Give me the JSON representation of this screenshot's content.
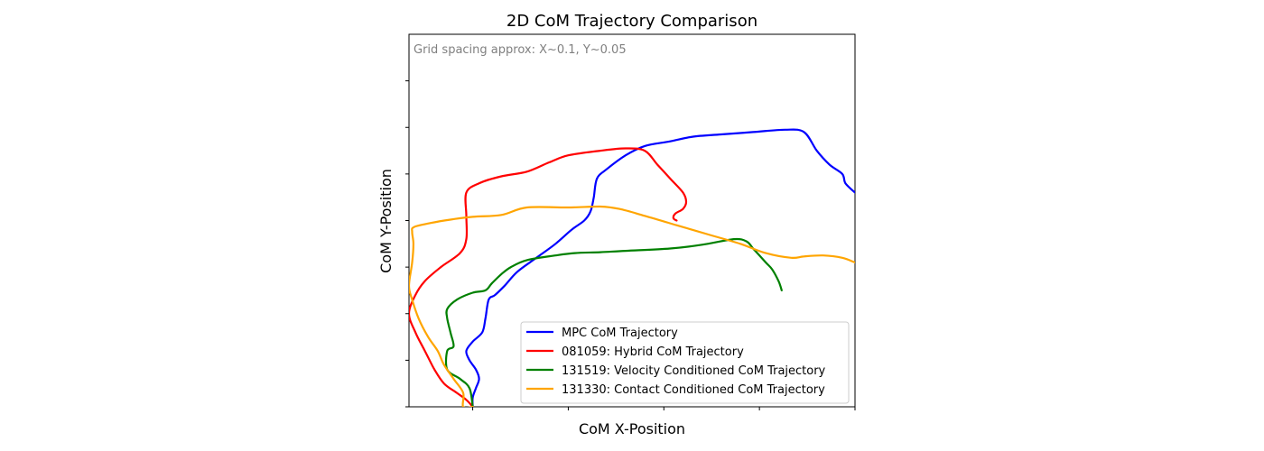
{
  "chart_data": {
    "type": "line",
    "title": "2D CoM Trajectory Comparison",
    "xlabel": "CoM X-Position",
    "ylabel": "CoM Y-Position",
    "xlim": [
      -0.1,
      0.6
    ],
    "ylim": [
      -0.05,
      0.75
    ],
    "x_ticks": [
      0.0,
      0.15,
      0.3,
      0.45,
      0.6
    ],
    "y_ticks": [
      -0.05,
      0.05,
      0.15,
      0.25,
      0.35,
      0.45,
      0.55,
      0.65
    ],
    "tick_labels_shown": false,
    "grid": false,
    "annotation": "Grid spacing approx: X~0.1, Y~0.05",
    "legend_position": "bottom-right",
    "series": [
      {
        "name": "MPC CoM Trajectory",
        "color": "#0000ff",
        "points": [
          [
            0.0,
            -0.05
          ],
          [
            0.0,
            -0.03
          ],
          [
            0.005,
            -0.01
          ],
          [
            0.01,
            0.01
          ],
          [
            0.005,
            0.03
          ],
          [
            -0.005,
            0.05
          ],
          [
            -0.01,
            0.07
          ],
          [
            0.0,
            0.09
          ],
          [
            0.015,
            0.11
          ],
          [
            0.02,
            0.14
          ],
          [
            0.025,
            0.18
          ],
          [
            0.035,
            0.19
          ],
          [
            0.05,
            0.21
          ],
          [
            0.07,
            0.24
          ],
          [
            0.1,
            0.27
          ],
          [
            0.13,
            0.3
          ],
          [
            0.155,
            0.33
          ],
          [
            0.175,
            0.35
          ],
          [
            0.185,
            0.37
          ],
          [
            0.19,
            0.4
          ],
          [
            0.195,
            0.44
          ],
          [
            0.21,
            0.46
          ],
          [
            0.24,
            0.49
          ],
          [
            0.27,
            0.51
          ],
          [
            0.31,
            0.52
          ],
          [
            0.345,
            0.53
          ],
          [
            0.39,
            0.535
          ],
          [
            0.44,
            0.54
          ],
          [
            0.49,
            0.545
          ],
          [
            0.52,
            0.54
          ],
          [
            0.54,
            0.5
          ],
          [
            0.56,
            0.47
          ],
          [
            0.58,
            0.45
          ],
          [
            0.585,
            0.43
          ],
          [
            0.6,
            0.41
          ]
        ]
      },
      {
        "name": "081059: Hybrid CoM Trajectory",
        "color": "#ff0000",
        "points": [
          [
            0.0,
            -0.05
          ],
          [
            -0.01,
            -0.035
          ],
          [
            -0.025,
            -0.02
          ],
          [
            -0.045,
            0.0
          ],
          [
            -0.06,
            0.03
          ],
          [
            -0.075,
            0.07
          ],
          [
            -0.09,
            0.11
          ],
          [
            -0.1,
            0.15
          ],
          [
            -0.09,
            0.19
          ],
          [
            -0.075,
            0.22
          ],
          [
            -0.05,
            0.25
          ],
          [
            -0.02,
            0.28
          ],
          [
            -0.01,
            0.31
          ],
          [
            -0.01,
            0.36
          ],
          [
            -0.01,
            0.41
          ],
          [
            0.01,
            0.43
          ],
          [
            0.045,
            0.445
          ],
          [
            0.085,
            0.455
          ],
          [
            0.12,
            0.475
          ],
          [
            0.15,
            0.49
          ],
          [
            0.2,
            0.5
          ],
          [
            0.24,
            0.505
          ],
          [
            0.27,
            0.5
          ],
          [
            0.29,
            0.47
          ],
          [
            0.31,
            0.44
          ],
          [
            0.33,
            0.41
          ],
          [
            0.335,
            0.39
          ],
          [
            0.33,
            0.375
          ],
          [
            0.318,
            0.365
          ],
          [
            0.315,
            0.355
          ],
          [
            0.32,
            0.35
          ]
        ]
      },
      {
        "name": "131519: Velocity Conditioned CoM Trajectory",
        "color": "#008000",
        "points": [
          [
            0.0,
            -0.05
          ],
          [
            -0.005,
            -0.01
          ],
          [
            -0.02,
            0.01
          ],
          [
            -0.04,
            0.03
          ],
          [
            -0.04,
            0.07
          ],
          [
            -0.03,
            0.08
          ],
          [
            -0.035,
            0.11
          ],
          [
            -0.04,
            0.14
          ],
          [
            -0.04,
            0.16
          ],
          [
            -0.025,
            0.18
          ],
          [
            0.0,
            0.195
          ],
          [
            0.02,
            0.2
          ],
          [
            0.03,
            0.215
          ],
          [
            0.045,
            0.235
          ],
          [
            0.06,
            0.25
          ],
          [
            0.085,
            0.265
          ],
          [
            0.13,
            0.275
          ],
          [
            0.16,
            0.28
          ],
          [
            0.2,
            0.282
          ],
          [
            0.24,
            0.285
          ],
          [
            0.31,
            0.29
          ],
          [
            0.36,
            0.298
          ],
          [
            0.41,
            0.31
          ],
          [
            0.43,
            0.305
          ],
          [
            0.44,
            0.29
          ],
          [
            0.46,
            0.26
          ],
          [
            0.47,
            0.245
          ],
          [
            0.48,
            0.22
          ],
          [
            0.485,
            0.2
          ]
        ]
      },
      {
        "name": "131330: Contact Conditioned CoM Trajectory",
        "color": "#ffa500",
        "points": [
          [
            0.0,
            -0.05
          ],
          [
            -0.015,
            -0.05
          ],
          [
            -0.015,
            -0.02
          ],
          [
            -0.03,
            0.01
          ],
          [
            -0.045,
            0.04
          ],
          [
            -0.055,
            0.07
          ],
          [
            -0.07,
            0.1
          ],
          [
            -0.085,
            0.14
          ],
          [
            -0.095,
            0.18
          ],
          [
            -0.1,
            0.21
          ],
          [
            -0.095,
            0.26
          ],
          [
            -0.093,
            0.3
          ],
          [
            -0.095,
            0.325
          ],
          [
            -0.092,
            0.336
          ],
          [
            -0.065,
            0.345
          ],
          [
            -0.035,
            0.352
          ],
          [
            0.0,
            0.358
          ],
          [
            0.045,
            0.362
          ],
          [
            0.085,
            0.378
          ],
          [
            0.15,
            0.378
          ],
          [
            0.2,
            0.38
          ],
          [
            0.23,
            0.375
          ],
          [
            0.27,
            0.36
          ],
          [
            0.32,
            0.34
          ],
          [
            0.37,
            0.32
          ],
          [
            0.42,
            0.3
          ],
          [
            0.46,
            0.28
          ],
          [
            0.5,
            0.27
          ],
          [
            0.52,
            0.273
          ],
          [
            0.55,
            0.275
          ],
          [
            0.58,
            0.27
          ],
          [
            0.6,
            0.26
          ]
        ]
      }
    ]
  }
}
